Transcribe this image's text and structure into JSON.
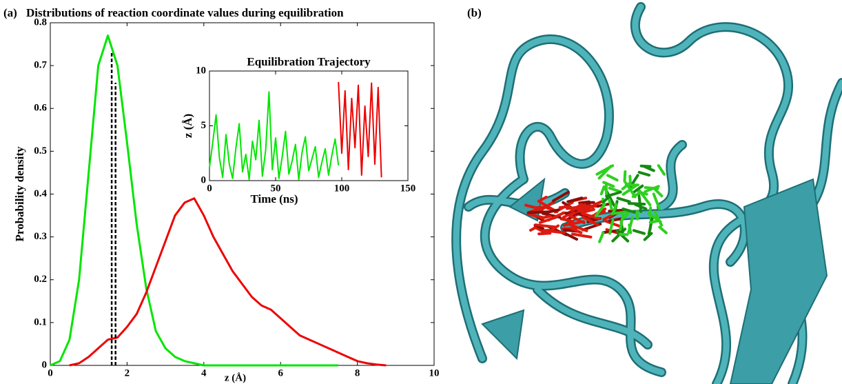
{
  "chart_data": [
    {
      "type": "line",
      "panel_label": "(a)",
      "title": "Distributions of reaction coordinate values during equilibration",
      "x_label": "z (Å)",
      "y_label": "Probability density",
      "xlim": [
        0,
        10
      ],
      "ylim": [
        0,
        0.8
      ],
      "xticks": [
        0,
        2,
        4,
        6,
        8,
        10
      ],
      "yticks": [
        0,
        0.1,
        0.2,
        0.3,
        0.4,
        0.5,
        0.6,
        0.7,
        0.8
      ],
      "x": [
        0,
        0.25,
        0.5,
        0.75,
        1,
        1.25,
        1.5,
        1.75,
        2,
        2.25,
        2.5,
        2.75,
        3,
        3.25,
        3.5,
        3.75,
        4,
        4.25,
        4.5,
        4.75,
        5,
        5.25,
        5.5,
        5.75,
        6,
        6.25,
        6.5,
        6.75,
        7,
        7.25,
        7.5,
        7.75,
        8,
        8.25,
        8.5,
        8.75
      ],
      "series": [
        {
          "color": "#00e600",
          "values": [
            0,
            0.01,
            0.06,
            0.2,
            0.45,
            0.7,
            0.77,
            0.7,
            0.52,
            0.33,
            0.18,
            0.08,
            0.04,
            0.02,
            0.01,
            0.005,
            0,
            0,
            0,
            0,
            0,
            0,
            0,
            0,
            0,
            0,
            0,
            0,
            0,
            0,
            0,
            null,
            null,
            null,
            null,
            null
          ]
        },
        {
          "color": "#ee0000",
          "values": [
            null,
            null,
            0,
            0.005,
            0.02,
            0.04,
            0.06,
            0.065,
            0.09,
            0.12,
            0.17,
            0.23,
            0.29,
            0.35,
            0.38,
            0.39,
            0.35,
            0.3,
            0.26,
            0.22,
            0.19,
            0.16,
            0.14,
            0.13,
            0.11,
            0.09,
            0.07,
            0.06,
            0.05,
            0.04,
            0.03,
            0.02,
            0.01,
            0.005,
            0.002,
            0
          ]
        }
      ],
      "vlines": [
        {
          "x": 1.6,
          "top": 0.73
        },
        {
          "x": 1.7,
          "top": 0.66
        }
      ]
    },
    {
      "type": "line",
      "title": "Equilibration Trajectory",
      "x_label": "Time (ns)",
      "y_label": "z (Å)",
      "xlim": [
        0,
        150
      ],
      "ylim": [
        0,
        10
      ],
      "xticks": [
        0,
        50,
        100,
        150
      ],
      "yticks": [
        0,
        5,
        10
      ],
      "x": [
        0,
        2.5,
        5,
        7.5,
        10,
        12.5,
        15,
        17.5,
        20,
        22.5,
        25,
        27.5,
        30,
        32.5,
        35,
        37.5,
        40,
        42.5,
        45,
        47.5,
        50,
        52.5,
        55,
        57.5,
        60,
        62.5,
        65,
        67.5,
        70,
        72.5,
        75,
        77.5,
        80,
        82.5,
        85,
        87.5,
        90,
        92.5,
        95,
        97.5,
        100,
        102.5,
        105,
        107.5,
        110,
        112.5,
        115,
        117.5,
        120,
        122.5,
        125,
        127.5,
        130
      ],
      "series": [
        {
          "color": "#00e600",
          "values": [
            1.2,
            3.5,
            6.0,
            2.1,
            0.3,
            4.2,
            1.5,
            0.2,
            3.0,
            5.2,
            0.8,
            2.4,
            0.1,
            3.6,
            1.9,
            5.5,
            0.4,
            2.8,
            8.1,
            1.0,
            3.9,
            0.2,
            2.2,
            4.5,
            0.6,
            1.8,
            3.3,
            0.1,
            2.6,
            4.0,
            0.9,
            2.0,
            3.1,
            0.3,
            1.7,
            2.9,
            0.5,
            2.3,
            3.8,
            1.4,
            null,
            null,
            null,
            null,
            null,
            null,
            null,
            null,
            null,
            null,
            null,
            null,
            null
          ]
        },
        {
          "color": "#ee0000",
          "values": [
            null,
            null,
            null,
            null,
            null,
            null,
            null,
            null,
            null,
            null,
            null,
            null,
            null,
            null,
            null,
            null,
            null,
            null,
            null,
            null,
            null,
            null,
            null,
            null,
            null,
            null,
            null,
            null,
            null,
            null,
            null,
            null,
            null,
            null,
            null,
            null,
            null,
            null,
            null,
            9.0,
            2.5,
            8.2,
            1.0,
            7.5,
            3.0,
            8.7,
            0.5,
            6.8,
            2.2,
            8.9,
            1.5,
            8.5,
            0.3
          ]
        }
      ]
    }
  ],
  "panel_b": {
    "label": "(b)"
  }
}
